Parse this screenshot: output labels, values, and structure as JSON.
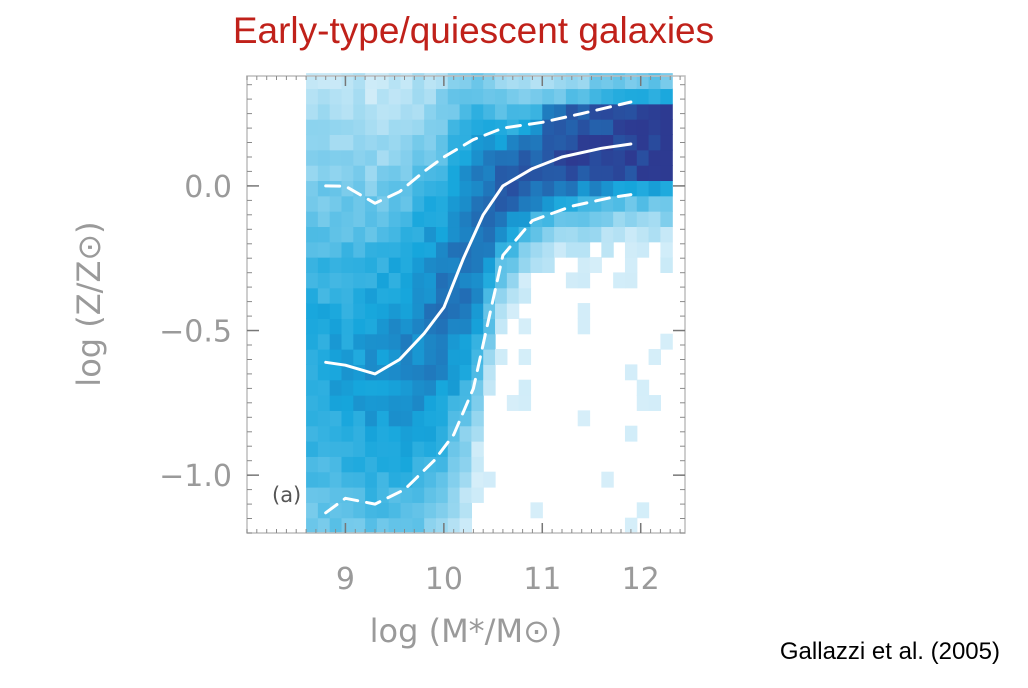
{
  "title": "Early-type/quiescent galaxies",
  "citation": "Gallazzi et al. (2005)",
  "chart_data": {
    "type": "heatmap",
    "title": "Early-type/quiescent galaxies",
    "xlabel": "log (M*/M⊙)",
    "ylabel": "log (Z/Z⊙)",
    "xlim": [
      8.0,
      12.45
    ],
    "ylim": [
      -1.2,
      0.38
    ],
    "x_ticks": [
      9,
      10,
      11,
      12
    ],
    "x_tick_labels": [
      "9",
      "10",
      "11",
      "12"
    ],
    "y_ticks": [
      0.0,
      -0.5,
      -1.0
    ],
    "y_tick_labels": [
      "0.0",
      "−0.5",
      "−1.0"
    ],
    "panel_label": "(a)",
    "grid": false,
    "colors": {
      "light": "#e8f5fc",
      "mid": "#16a6dc",
      "dark": "#2d3a91",
      "lines": "#ffffff"
    },
    "series": [
      {
        "style": "solid",
        "x": [
          8.8,
          9.0,
          9.3,
          9.55,
          9.8,
          10.0,
          10.2,
          10.4,
          10.6,
          10.9,
          11.2,
          11.6,
          11.9
        ],
        "y": [
          -0.61,
          -0.62,
          -0.65,
          -0.6,
          -0.51,
          -0.42,
          -0.25,
          -0.1,
          0.0,
          0.06,
          0.1,
          0.13,
          0.145
        ]
      },
      {
        "style": "dashed",
        "x": [
          8.8,
          9.0,
          9.3,
          9.55,
          9.8,
          10.0,
          10.3,
          10.6,
          11.0,
          11.4,
          11.9
        ],
        "y": [
          0.0,
          -0.001,
          -0.06,
          -0.02,
          0.05,
          0.1,
          0.16,
          0.2,
          0.22,
          0.25,
          0.29
        ]
      },
      {
        "style": "dashed",
        "x": [
          8.8,
          9.0,
          9.3,
          9.6,
          9.9,
          10.1,
          10.3,
          10.45,
          10.6,
          10.9,
          11.3,
          11.7,
          11.9
        ],
        "y": [
          -1.13,
          -1.08,
          -1.1,
          -1.05,
          -0.95,
          -0.86,
          -0.7,
          -0.47,
          -0.24,
          -0.12,
          -0.07,
          -0.04,
          -0.03
        ]
      }
    ]
  }
}
